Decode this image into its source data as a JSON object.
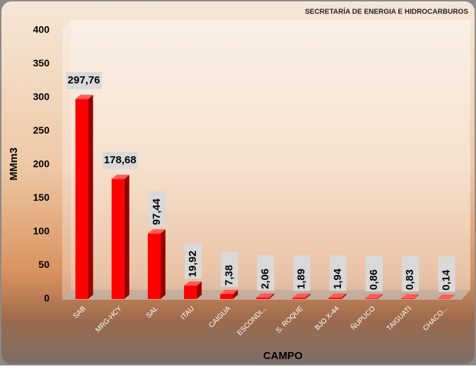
{
  "chart_data": {
    "type": "bar3d",
    "title": "SECRETARÍA DE ENERGIA E HIDROCARBUROS",
    "ylabel": "MMm3",
    "xlabel": "CAMPO",
    "categories": [
      "SAB",
      "MRG-HCY",
      "SAL",
      "ITAU",
      "CAIGUA",
      "ESCONDI...",
      "S. ROQUE",
      "BJO X-44",
      "ÑUPUCO",
      "TAIGUATI",
      "CHACO..."
    ],
    "values": [
      297.76,
      178.68,
      97.44,
      19.92,
      7.38,
      2.06,
      1.89,
      1.94,
      0.86,
      0.83,
      0.14
    ],
    "value_labels": [
      "297,76",
      "178,68",
      "97,44",
      "19,92",
      "7,38",
      "2,06",
      "1,89",
      "1,94",
      "0,86",
      "0,83",
      "0,14"
    ],
    "color": "#ff0000",
    "ylim": [
      0,
      400
    ],
    "yticks": [
      0,
      50,
      100,
      150,
      200,
      250,
      300,
      350,
      400
    ]
  }
}
